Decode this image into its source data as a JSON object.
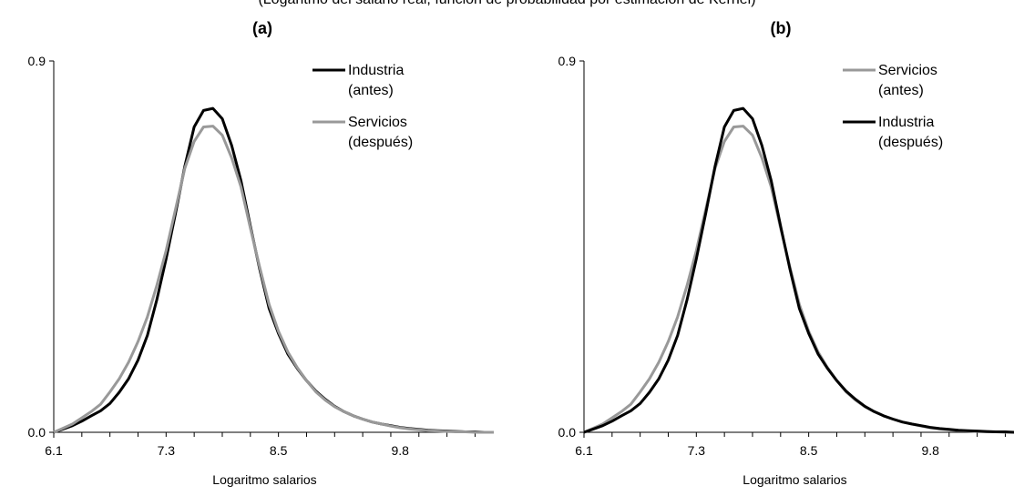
{
  "caption": "(Logaritmo del salario real, función de probabilidad por estimación de Kernel)",
  "colors": {
    "industria": "#000000",
    "servicios": "#999999"
  },
  "chart_data": [
    {
      "type": "line",
      "title": "(a)",
      "xlabel": "Logaritmo salarios",
      "ylabel": "",
      "xlim": [
        6.1,
        10.8
      ],
      "ylim": [
        0.0,
        0.9
      ],
      "xticks": [
        "6.1",
        "7.3",
        "8.5",
        "9.8"
      ],
      "yticks": [
        "0.0",
        "0.9"
      ],
      "legend_position": "top-right",
      "series": [
        {
          "name": "Industria\n(antes)",
          "color": "#000000",
          "x": [
            6.1,
            6.2,
            6.3,
            6.4,
            6.5,
            6.6,
            6.7,
            6.8,
            6.9,
            7.0,
            7.1,
            7.2,
            7.3,
            7.4,
            7.5,
            7.6,
            7.7,
            7.8,
            7.9,
            8.0,
            8.1,
            8.2,
            8.3,
            8.4,
            8.5,
            8.6,
            8.7,
            8.8,
            8.9,
            9.0,
            9.1,
            9.2,
            9.3,
            9.4,
            9.5,
            9.6,
            9.7,
            9.8,
            9.9,
            10.0,
            10.1,
            10.2,
            10.3,
            10.4,
            10.5,
            10.6,
            10.7,
            10.8
          ],
          "y": [
            0.0,
            0.008,
            0.016,
            0.027,
            0.04,
            0.052,
            0.07,
            0.097,
            0.13,
            0.175,
            0.235,
            0.32,
            0.42,
            0.53,
            0.645,
            0.74,
            0.78,
            0.785,
            0.76,
            0.695,
            0.61,
            0.5,
            0.395,
            0.3,
            0.24,
            0.19,
            0.155,
            0.125,
            0.1,
            0.08,
            0.063,
            0.05,
            0.04,
            0.032,
            0.025,
            0.02,
            0.016,
            0.012,
            0.009,
            0.007,
            0.005,
            0.004,
            0.003,
            0.002,
            0.001,
            0.001,
            0.0,
            0.0
          ]
        },
        {
          "name": "Servicios\n(después)",
          "color": "#999999",
          "x": [
            6.1,
            6.2,
            6.3,
            6.4,
            6.5,
            6.6,
            6.7,
            6.8,
            6.9,
            7.0,
            7.1,
            7.2,
            7.3,
            7.4,
            7.5,
            7.6,
            7.7,
            7.8,
            7.9,
            8.0,
            8.1,
            8.2,
            8.3,
            8.4,
            8.5,
            8.6,
            8.7,
            8.8,
            8.9,
            9.0,
            9.1,
            9.2,
            9.3,
            9.4,
            9.5,
            9.6,
            9.7,
            9.8,
            9.9,
            10.0,
            10.1,
            10.2,
            10.3,
            10.4,
            10.5,
            10.6,
            10.7,
            10.8
          ],
          "y": [
            0.0,
            0.01,
            0.02,
            0.035,
            0.05,
            0.068,
            0.098,
            0.13,
            0.17,
            0.22,
            0.28,
            0.355,
            0.44,
            0.54,
            0.64,
            0.705,
            0.74,
            0.742,
            0.72,
            0.665,
            0.595,
            0.495,
            0.4,
            0.31,
            0.245,
            0.195,
            0.157,
            0.125,
            0.098,
            0.078,
            0.062,
            0.05,
            0.04,
            0.032,
            0.025,
            0.02,
            0.015,
            0.011,
            0.008,
            0.006,
            0.004,
            0.003,
            0.002,
            0.001,
            0.001,
            0.0,
            0.0,
            0.0
          ]
        }
      ]
    },
    {
      "type": "line",
      "title": "(b)",
      "xlabel": "Logaritmo salarios",
      "ylabel": "",
      "xlim": [
        6.1,
        10.8
      ],
      "ylim": [
        0.0,
        0.9
      ],
      "xticks": [
        "6.1",
        "7.3",
        "8.5",
        "9.8"
      ],
      "yticks": [
        "0.0",
        "0.9"
      ],
      "legend_position": "top-right",
      "series": [
        {
          "name": "Servicios\n(antes)",
          "color": "#999999",
          "x": [
            6.1,
            6.2,
            6.3,
            6.4,
            6.5,
            6.6,
            6.7,
            6.8,
            6.9,
            7.0,
            7.1,
            7.2,
            7.3,
            7.4,
            7.5,
            7.6,
            7.7,
            7.8,
            7.9,
            8.0,
            8.1,
            8.2,
            8.3,
            8.4,
            8.5,
            8.6,
            8.7,
            8.8,
            8.9,
            9.0,
            9.1,
            9.2,
            9.3,
            9.4,
            9.5,
            9.6,
            9.7,
            9.8,
            9.9,
            10.0,
            10.1,
            10.2,
            10.3,
            10.4,
            10.5,
            10.6,
            10.7,
            10.8
          ],
          "y": [
            0.0,
            0.01,
            0.02,
            0.035,
            0.05,
            0.068,
            0.098,
            0.13,
            0.17,
            0.22,
            0.28,
            0.355,
            0.44,
            0.54,
            0.64,
            0.705,
            0.74,
            0.742,
            0.72,
            0.665,
            0.595,
            0.495,
            0.4,
            0.31,
            0.245,
            0.195,
            0.157,
            0.125,
            0.098,
            0.078,
            0.062,
            0.05,
            0.04,
            0.032,
            0.025,
            0.02,
            0.015,
            0.011,
            0.008,
            0.006,
            0.004,
            0.003,
            0.002,
            0.001,
            0.001,
            0.0,
            0.0,
            0.0
          ]
        },
        {
          "name": "Industria\n(después)",
          "color": "#000000",
          "x": [
            6.1,
            6.2,
            6.3,
            6.4,
            6.5,
            6.6,
            6.7,
            6.8,
            6.9,
            7.0,
            7.1,
            7.2,
            7.3,
            7.4,
            7.5,
            7.6,
            7.7,
            7.8,
            7.9,
            8.0,
            8.1,
            8.2,
            8.3,
            8.4,
            8.5,
            8.6,
            8.7,
            8.8,
            8.9,
            9.0,
            9.1,
            9.2,
            9.3,
            9.4,
            9.5,
            9.6,
            9.7,
            9.8,
            9.9,
            10.0,
            10.1,
            10.2,
            10.3,
            10.4,
            10.5,
            10.6,
            10.7,
            10.8
          ],
          "y": [
            0.0,
            0.008,
            0.016,
            0.027,
            0.04,
            0.052,
            0.07,
            0.097,
            0.13,
            0.175,
            0.235,
            0.32,
            0.42,
            0.53,
            0.645,
            0.74,
            0.78,
            0.785,
            0.76,
            0.695,
            0.61,
            0.5,
            0.395,
            0.3,
            0.24,
            0.19,
            0.155,
            0.125,
            0.1,
            0.08,
            0.063,
            0.05,
            0.04,
            0.032,
            0.025,
            0.02,
            0.016,
            0.012,
            0.009,
            0.007,
            0.005,
            0.004,
            0.003,
            0.002,
            0.001,
            0.001,
            0.0,
            0.0
          ]
        }
      ]
    }
  ]
}
